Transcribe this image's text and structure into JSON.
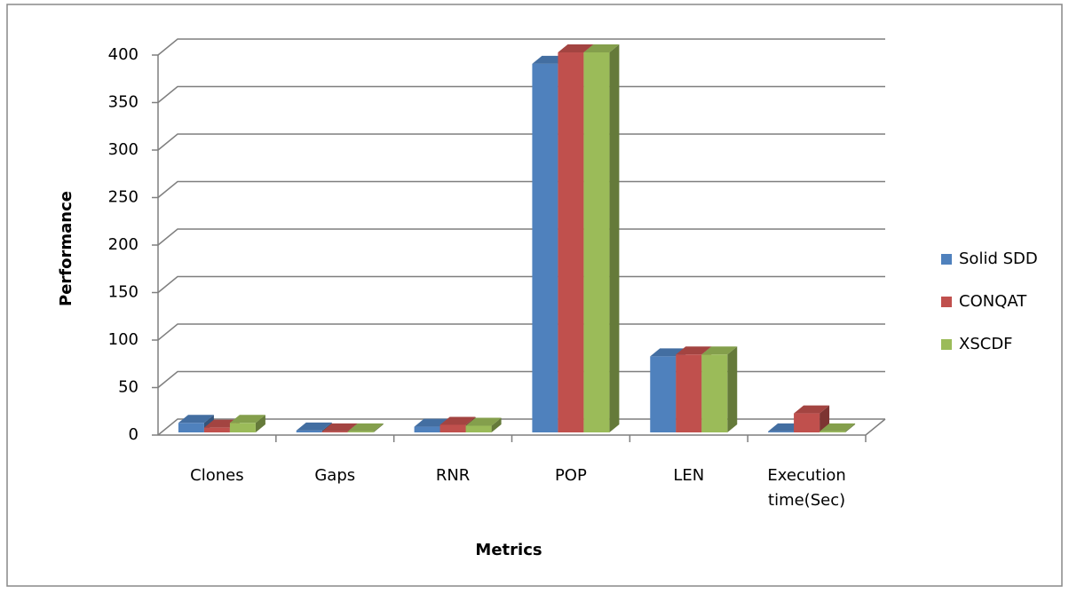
{
  "chart_data": {
    "type": "bar3d",
    "x_label": "Metrics",
    "y_label": "Performance",
    "categories": [
      "Clones",
      "Gaps",
      "RNR",
      "POP",
      "LEN",
      "Execution time(Sec)"
    ],
    "series": [
      {
        "name": "Solid SDD",
        "color": "#4f81bd",
        "values": [
          10,
          2,
          6,
          388,
          80,
          1
        ]
      },
      {
        "name": "CONQAT",
        "color": "#c0504d",
        "values": [
          5,
          1,
          8,
          400,
          82,
          20
        ]
      },
      {
        "name": "XSCDF",
        "color": "#9bbb59",
        "values": [
          10,
          1,
          7,
          400,
          82,
          1
        ]
      }
    ],
    "ylim": [
      0,
      400
    ],
    "yticks": [
      0,
      50,
      100,
      150,
      200,
      250,
      300,
      350,
      400
    ],
    "grid": true,
    "legend": "right"
  }
}
